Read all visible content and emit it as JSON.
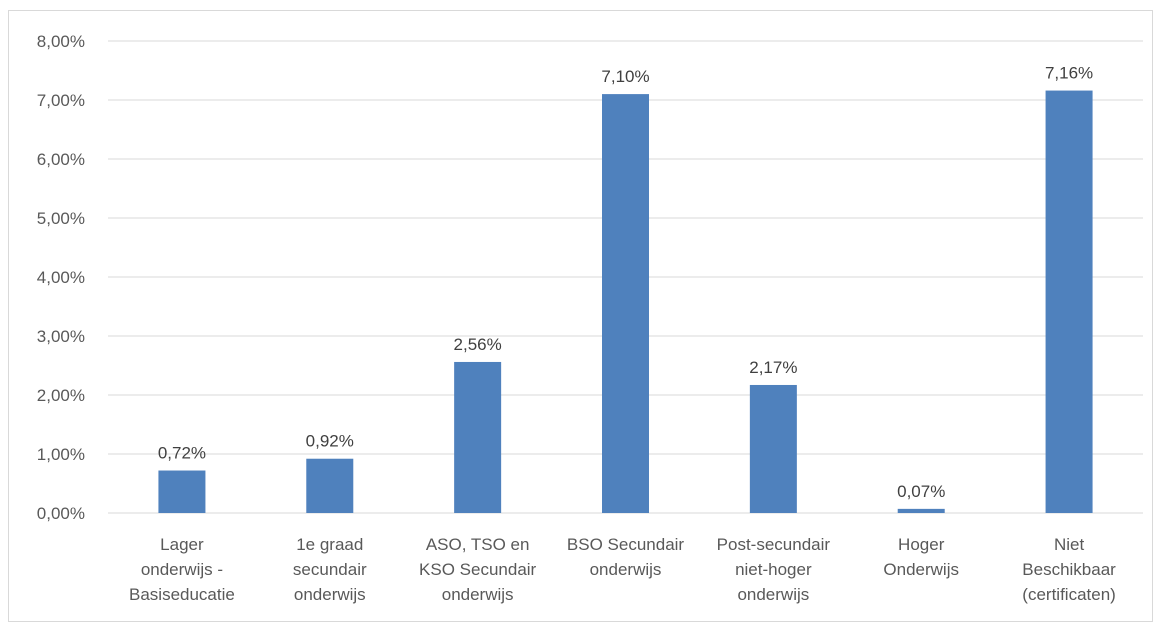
{
  "chart_data": {
    "type": "bar",
    "categories": [
      [
        "Lager",
        "onderwijs -",
        "Basiseducatie"
      ],
      [
        "1e graad",
        "secundair",
        "onderwijs"
      ],
      [
        "ASO, TSO en",
        "KSO Secundair",
        "onderwijs"
      ],
      [
        "BSO Secundair",
        "onderwijs"
      ],
      [
        "Post-secundair",
        "niet-hoger",
        "onderwijs"
      ],
      [
        "Hoger",
        "Onderwijs"
      ],
      [
        "Niet",
        "Beschikbaar",
        "(certificaten)"
      ]
    ],
    "values": [
      0.72,
      0.92,
      2.56,
      7.1,
      2.17,
      0.07,
      7.16
    ],
    "data_labels": [
      "0,72%",
      "0,92%",
      "2,56%",
      "7,10%",
      "2,17%",
      "0,07%",
      "7,16%"
    ],
    "y_ticks": [
      0,
      1,
      2,
      3,
      4,
      5,
      6,
      7,
      8
    ],
    "y_tick_labels": [
      "0,00%",
      "1,00%",
      "2,00%",
      "3,00%",
      "4,00%",
      "5,00%",
      "6,00%",
      "7,00%",
      "8,00%"
    ],
    "ylim": [
      0,
      8
    ],
    "grid": true,
    "legend": "none",
    "title": "",
    "xlabel": "",
    "ylabel": "",
    "colors": {
      "bar": "#4f81bd",
      "grid": "#d9d9d9",
      "text": "#595959"
    }
  }
}
